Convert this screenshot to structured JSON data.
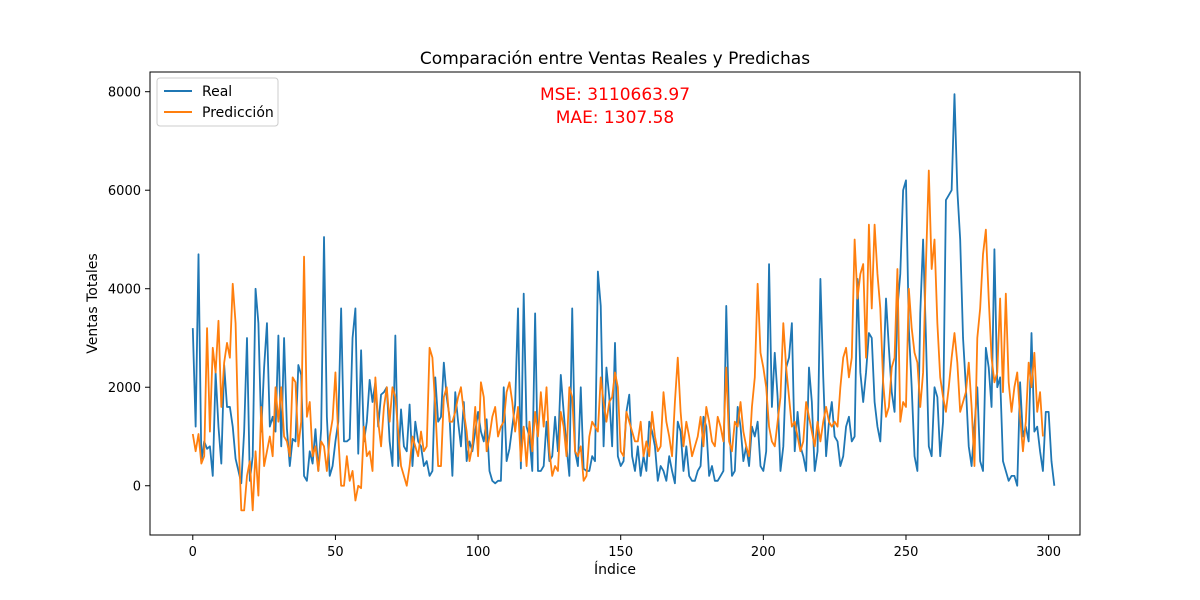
{
  "chart_data": {
    "type": "line",
    "title": "Comparación entre Ventas Reales y Predichas",
    "xlabel": "Índice",
    "ylabel": "Ventas Totales",
    "xlim": [
      -15,
      311
    ],
    "ylim": [
      -1000,
      8400
    ],
    "xticks": [
      0,
      50,
      100,
      150,
      200,
      250,
      300
    ],
    "yticks": [
      0,
      2000,
      4000,
      6000,
      8000
    ],
    "legend_position": "top-left",
    "annotations": [
      "MSE: 3110663.97",
      "MAE: 1307.58"
    ],
    "annotation_color": "#ff0000",
    "series": [
      {
        "name": "Real",
        "color": "#1f77b4",
        "values": [
          3200,
          1200,
          4700,
          500,
          900,
          750,
          800,
          200,
          2300,
          1200,
          450,
          2450,
          1600,
          1600,
          1200,
          550,
          300,
          50,
          1100,
          3000,
          100,
          600,
          4000,
          3300,
          1100,
          2400,
          3300,
          1200,
          1400,
          1100,
          3050,
          800,
          3000,
          1150,
          400,
          950,
          900,
          2450,
          2250,
          200,
          100,
          700,
          450,
          1150,
          300,
          1150,
          5050,
          1400,
          200,
          400,
          900,
          1300,
          3600,
          900,
          900,
          950,
          3000,
          3600,
          650,
          2750,
          900,
          1300,
          2150,
          1700,
          2100,
          1200,
          1850,
          1900,
          2000,
          900,
          400,
          3050,
          400,
          1550,
          800,
          700,
          1650,
          400,
          1300,
          900,
          800,
          400,
          500,
          200,
          300,
          2200,
          1300,
          1400,
          2500,
          1800,
          1400,
          200,
          1900,
          1300,
          800,
          1700,
          500,
          900,
          700,
          1100,
          1500,
          1100,
          900,
          1350,
          300,
          100,
          50,
          100,
          100,
          2000,
          500,
          750,
          1200,
          1650,
          3600,
          350,
          3900,
          1200,
          1000,
          300,
          3500,
          300,
          300,
          400,
          1300,
          500,
          600,
          1400,
          700,
          2250,
          1500,
          800,
          200,
          3600,
          700,
          400,
          2000,
          350,
          300,
          300,
          600,
          500,
          4350,
          3650,
          800,
          2400,
          1800,
          800,
          2900,
          600,
          400,
          500,
          1500,
          1850,
          600,
          300,
          800,
          200,
          600,
          300,
          1300,
          1100,
          800,
          100,
          400,
          300,
          100,
          600,
          300,
          50,
          1300,
          1100,
          300,
          800,
          200,
          100,
          100,
          300,
          400,
          1400,
          1200,
          200,
          400,
          100,
          100,
          200,
          300,
          3650,
          1300,
          200,
          300,
          1600,
          1200,
          500,
          800,
          400,
          1200,
          1000,
          1300,
          400,
          300,
          700,
          4500,
          1600,
          2700,
          1800,
          300,
          800,
          2400,
          2600,
          3300,
          700,
          1500,
          800,
          600,
          300,
          2400,
          1700,
          300,
          700,
          4200,
          2200,
          600,
          1300,
          1700,
          1000,
          900,
          400,
          600,
          1200,
          1400,
          900,
          1000,
          4200,
          2300,
          1700,
          2300,
          3100,
          3000,
          1700,
          1200,
          900,
          2200,
          3800,
          2800,
          1900,
          1500,
          3600,
          4300,
          6000,
          6200,
          3200,
          2000,
          600,
          300,
          3500,
          5000,
          3000,
          800,
          600,
          2000,
          1800,
          600,
          1300,
          5800,
          5900,
          6000,
          7950,
          6000,
          5000,
          3000,
          2000,
          800,
          400,
          1200,
          2000,
          500,
          300,
          2800,
          2400,
          1600,
          4800,
          2000,
          2200,
          500,
          300,
          100,
          200,
          200,
          0,
          2100,
          1000,
          1200,
          900,
          3100,
          1100,
          1200,
          700,
          300,
          1500,
          1500,
          500,
          0
        ],
        "values_note": "approximate; read from plot"
      },
      {
        "name": "Predicción",
        "color": "#ff7f0e",
        "values": [
          1050,
          700,
          1050,
          450,
          600,
          3200,
          1100,
          2800,
          2300,
          3350,
          1600,
          2500,
          2900,
          2600,
          4100,
          3300,
          1000,
          -500,
          -500,
          200,
          500,
          -500,
          700,
          -200,
          1600,
          400,
          700,
          1000,
          600,
          2000,
          1300,
          2000,
          1000,
          900,
          600,
          2200,
          2100,
          800,
          1300,
          4650,
          1400,
          1700,
          600,
          800,
          300,
          900,
          800,
          300,
          1000,
          1350,
          2300,
          1000,
          0,
          0,
          600,
          100,
          300,
          -300,
          0,
          -50,
          1200,
          600,
          700,
          300,
          2200,
          1300,
          800,
          1600,
          2000,
          1300,
          2000,
          1800,
          1100,
          400,
          200,
          0,
          400,
          1000,
          800,
          600,
          1100,
          700,
          800,
          2800,
          2600,
          1600,
          400,
          400,
          1800,
          2000,
          1300,
          1300,
          1500,
          1800,
          2000,
          1500,
          1100,
          500,
          800,
          1600,
          600,
          2100,
          1800,
          700,
          1000,
          1400,
          1600,
          1000,
          1200,
          1300,
          1900,
          2100,
          1700,
          1100,
          1600,
          500,
          1200,
          400,
          1300,
          700,
          1500,
          1000,
          1900,
          1200,
          2000,
          700,
          200,
          400,
          300,
          1500,
          1200,
          600,
          2000,
          1800,
          700,
          600,
          800,
          100,
          200,
          1000,
          1300,
          1200,
          1100,
          2200,
          1700,
          1300,
          1700,
          1800,
          2300,
          2000,
          700,
          600,
          1500,
          1300,
          1100,
          900,
          900,
          1300,
          600,
          900,
          600,
          1500,
          1000,
          700,
          800,
          1900,
          1300,
          1000,
          600,
          1700,
          2600,
          1500,
          800,
          1300,
          1000,
          600,
          800,
          1000,
          1400,
          800,
          1600,
          1300,
          900,
          800,
          1400,
          1200,
          900,
          2400,
          900,
          700,
          1300,
          1200,
          1700,
          1100,
          800,
          600,
          1600,
          2200,
          4100,
          2700,
          2400,
          2000,
          1200,
          900,
          800,
          1300,
          1800,
          3300,
          2400,
          1800,
          1200,
          1300,
          1000,
          700,
          900,
          1700,
          1400,
          1100,
          800,
          1300,
          900,
          1300,
          1600,
          1300,
          1200,
          1300,
          1200,
          2000,
          2600,
          2800,
          2200,
          2600,
          5000,
          3800,
          4300,
          4500,
          2600,
          5300,
          3600,
          5300,
          4300,
          3600,
          2100,
          1400,
          1600,
          2400,
          2600,
          4400,
          1300,
          1700,
          1600,
          4000,
          3200,
          2700,
          2500,
          1600,
          2300,
          4500,
          6400,
          4400,
          5000,
          3300,
          2200,
          1800,
          1500,
          2000,
          2600,
          3100,
          2500,
          1500,
          1700,
          1900,
          2500,
          1600,
          400,
          3000,
          3600,
          4700,
          5200,
          3800,
          2600,
          2100,
          2300,
          3800,
          1900,
          3900,
          2100,
          1500,
          2000,
          2300,
          1400,
          700,
          1300,
          2500,
          2000,
          2700,
          1500,
          1900,
          1000
        ]
      }
    ]
  }
}
